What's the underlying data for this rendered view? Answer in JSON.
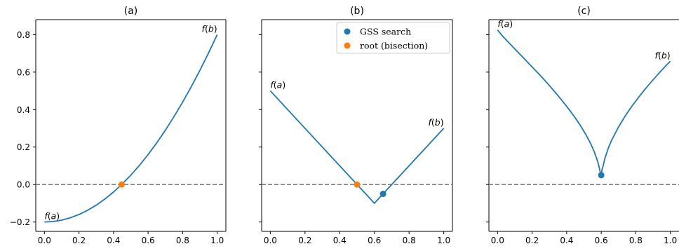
{
  "chart_data": [
    {
      "type": "line",
      "title": "(a)",
      "xlim": [
        -0.05,
        1.05
      ],
      "ylim": [
        -0.25,
        0.88
      ],
      "x_ticks": [
        "0.0",
        "0.2",
        "0.4",
        "0.6",
        "0.8",
        "1.0"
      ],
      "y_ticks": [
        "−0.2",
        "0.0",
        "0.2",
        "0.4",
        "0.6",
        "0.8"
      ],
      "y_tick_labels_shown": true,
      "reference_line_y": 0,
      "curve": {
        "x": [
          0.0,
          0.05,
          0.1,
          0.15,
          0.2,
          0.25,
          0.3,
          0.35,
          0.4,
          0.45,
          0.5,
          0.55,
          0.6,
          0.65,
          0.7,
          0.75,
          0.8,
          0.85,
          0.9,
          0.95,
          1.0
        ],
        "y": [
          -0.2,
          -0.1975,
          -0.19,
          -0.1775,
          -0.16,
          -0.1375,
          -0.11,
          -0.0775,
          -0.04,
          0.0025,
          0.05,
          0.1025,
          0.16,
          0.2225,
          0.29,
          0.3625,
          0.44,
          0.5225,
          0.61,
          0.7025,
          0.8
        ]
      },
      "points": [
        {
          "name": "root (bisection)",
          "x": 0.447,
          "y": 0.0
        }
      ],
      "annotations": [
        {
          "text": "f(a)",
          "x": 0.0,
          "y": -0.2
        },
        {
          "text": "f(b)",
          "x": 1.0,
          "y": 0.8
        }
      ]
    },
    {
      "type": "line",
      "title": "(b)",
      "xlim": [
        -0.05,
        1.05
      ],
      "ylim": [
        -0.25,
        0.88
      ],
      "x_ticks": [
        "0.0",
        "0.2",
        "0.4",
        "0.6",
        "0.8",
        "1.0"
      ],
      "y_ticks": [
        "−0.2",
        "0.0",
        "0.2",
        "0.4",
        "0.6",
        "0.8"
      ],
      "y_tick_labels_shown": false,
      "reference_line_y": 0,
      "curve": {
        "x": [
          0.0,
          0.6,
          1.0
        ],
        "y": [
          0.5,
          -0.1,
          0.3
        ]
      },
      "points": [
        {
          "name": "GSS search",
          "x": 0.65,
          "y": -0.05
        },
        {
          "name": "root (bisection)",
          "x": 0.5,
          "y": 0.0
        }
      ],
      "annotations": [
        {
          "text": "f(a)",
          "x": 0.0,
          "y": 0.5
        },
        {
          "text": "f(b)",
          "x": 1.0,
          "y": 0.3
        }
      ],
      "legend": {
        "position": "top-right",
        "entries": [
          {
            "label": "GSS search",
            "color": "#1f77b4"
          },
          {
            "label": "root (bisection)",
            "color": "#ff7f0e"
          }
        ]
      }
    },
    {
      "type": "line",
      "title": "(c)",
      "xlim": [
        -0.05,
        1.05
      ],
      "ylim": [
        -0.25,
        0.88
      ],
      "x_ticks": [
        "0.0",
        "0.2",
        "0.4",
        "0.6",
        "0.8",
        "1.0"
      ],
      "y_ticks": [
        "−0.2",
        "0.0",
        "0.2",
        "0.4",
        "0.6",
        "0.8"
      ],
      "y_tick_labels_shown": false,
      "reference_line_y": 0,
      "curve": {
        "x": [
          0.0,
          0.03,
          0.06,
          0.09,
          0.12,
          0.15,
          0.18,
          0.21,
          0.24,
          0.27,
          0.3,
          0.33,
          0.36,
          0.39,
          0.42,
          0.45,
          0.48,
          0.51,
          0.54,
          0.56,
          0.58,
          0.59,
          0.595,
          0.6,
          0.605,
          0.61,
          0.62,
          0.64,
          0.66,
          0.7,
          0.74,
          0.78,
          0.82,
          0.86,
          0.9,
          0.94,
          0.98,
          1.0
        ],
        "y": [
          0.825,
          0.791,
          0.762,
          0.733,
          0.704,
          0.676,
          0.647,
          0.618,
          0.589,
          0.559,
          0.528,
          0.496,
          0.463,
          0.429,
          0.393,
          0.355,
          0.314,
          0.268,
          0.216,
          0.174,
          0.121,
          0.085,
          0.061,
          0.05,
          0.082,
          0.095,
          0.136,
          0.192,
          0.236,
          0.307,
          0.368,
          0.421,
          0.47,
          0.516,
          0.559,
          0.6,
          0.64,
          0.658
        ]
      },
      "points": [
        {
          "name": "GSS search",
          "x": 0.6,
          "y": 0.05
        }
      ],
      "annotations": [
        {
          "text": "f(a)",
          "x": 0.0,
          "y": 0.825
        },
        {
          "text": "f(b)",
          "x": 1.0,
          "y": 0.658
        }
      ]
    }
  ],
  "colors": {
    "curve": "#1f77b4",
    "gss_point": "#1f77b4",
    "root_point": "#ff7f0e",
    "reference_line": "#808080",
    "axes": "#000000"
  }
}
